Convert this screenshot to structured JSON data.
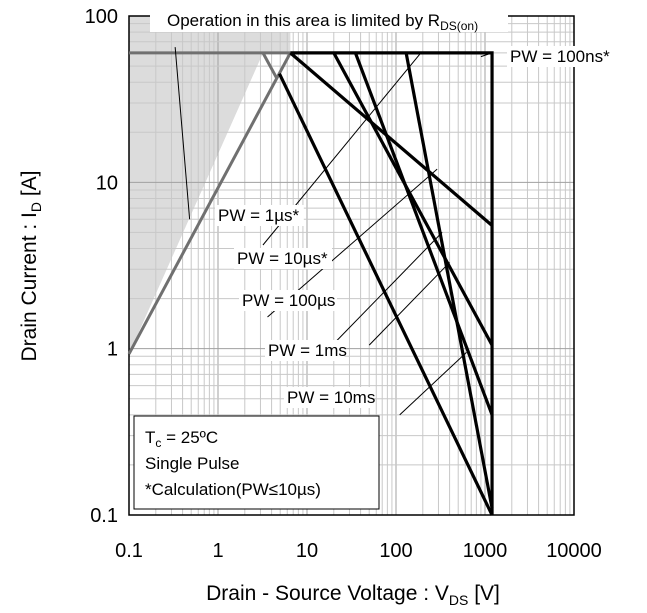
{
  "chart_data": {
    "type": "line",
    "title": "",
    "xlabel": "Drain - Source Voltage : V",
    "xlabel_sub": "DS",
    "xlabel_unit": " [V]",
    "ylabel": "Drain Current : I",
    "ylabel_sub": "D",
    "ylabel_unit": " [A]",
    "x_scale": "log",
    "y_scale": "log",
    "xlim": [
      0.1,
      10000
    ],
    "ylim": [
      0.1,
      100
    ],
    "x_ticks": [
      0.1,
      1,
      10,
      100,
      1000,
      10000
    ],
    "x_tick_labels": [
      "0.1",
      "1",
      "10",
      "100",
      "1000",
      "10000"
    ],
    "y_ticks": [
      0.1,
      1,
      10,
      100
    ],
    "y_tick_labels": [
      "0.1",
      "1",
      "10",
      "100"
    ],
    "grid": true,
    "colors": {
      "rds_region": "#dcdcdc",
      "rds_line": "#707070",
      "pw_lines": "#000000"
    },
    "rds_region": {
      "label": "Operation in this area is limited by R",
      "label_sub": "DS(on)",
      "boundary": [
        [
          0.1,
          0.93
        ],
        [
          3.2,
          60
        ],
        [
          6.5,
          60
        ]
      ]
    },
    "series": [
      {
        "name": "PW = 100ns*",
        "points": [
          [
            6.5,
            60
          ],
          [
            1200,
            60
          ],
          [
            1200,
            0.1
          ]
        ]
      },
      {
        "name": "PW = 1µs*",
        "points": [
          [
            6.5,
            60
          ],
          [
            1200,
            5.5
          ]
        ]
      },
      {
        "name": "PW = 10µs*",
        "points": [
          [
            20,
            60
          ],
          [
            1200,
            1.05
          ]
        ]
      },
      {
        "name": "PW = 100µs",
        "points": [
          [
            35,
            60
          ],
          [
            1200,
            0.4
          ]
        ]
      },
      {
        "name": "PW = 1ms",
        "points": [
          [
            130,
            60
          ],
          [
            1200,
            0.11
          ]
        ]
      },
      {
        "name": "PW = 10ms",
        "points": [
          [
            4.9,
            45
          ],
          [
            1200,
            0.1
          ]
        ]
      }
    ],
    "rds_line_points": [
      [
        0.1,
        0.93
      ],
      [
        6.5,
        60
      ]
    ],
    "annotations": [
      {
        "series": "PW = 100ns*",
        "pointer": [
          [
            900,
            57
          ],
          [
            1200,
            60
          ]
        ]
      },
      {
        "series": "PW = 1µs*",
        "pointer": [
          [
            3.2,
            4.2
          ],
          [
            190,
            60
          ]
        ]
      },
      {
        "series": "PW = 10µs*",
        "pointer": [
          [
            3.6,
            1.55
          ],
          [
            290,
            12
          ]
        ]
      },
      {
        "series": "PW = 100µs",
        "pointer": [
          [
            14,
            0.88
          ],
          [
            330,
            5
          ]
        ]
      },
      {
        "series": "PW = 1ms",
        "pointer": [
          [
            50,
            1.05
          ],
          [
            400,
            3.3
          ]
        ]
      },
      {
        "series": "PW = 10ms",
        "pointer": [
          [
            110,
            0.4
          ],
          [
            620,
            0.95
          ]
        ]
      }
    ],
    "rds_label_pointer": [
      [
        0.33,
        65
      ],
      [
        0.48,
        6
      ]
    ],
    "conditions": [
      "T",
      "Single Pulse",
      "*Calculation(PW≤10µs)"
    ],
    "condition_tc": {
      "sub": "c",
      "value": " = 25ºC"
    }
  }
}
